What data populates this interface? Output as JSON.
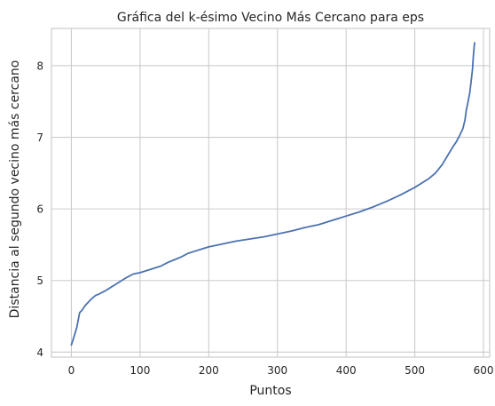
{
  "chart_data": {
    "type": "line",
    "title": "Gráfica del k-ésimo Vecino Más Cercano para eps",
    "xlabel": "Puntos",
    "ylabel": "Distancia al segundo vecino más cercano",
    "xlim": [
      -29,
      609
    ],
    "ylim": [
      3.93,
      8.52
    ],
    "xticks": [
      0,
      100,
      200,
      300,
      400,
      500,
      600
    ],
    "yticks": [
      4,
      5,
      6,
      7,
      8
    ],
    "grid": true,
    "series": [
      {
        "color": "#4c72b0",
        "x": [
          0,
          3,
          5,
          8,
          10,
          12,
          15,
          18,
          20,
          25,
          30,
          35,
          40,
          50,
          60,
          70,
          80,
          90,
          100,
          110,
          120,
          130,
          140,
          150,
          160,
          170,
          180,
          190,
          200,
          220,
          240,
          260,
          280,
          300,
          320,
          340,
          360,
          380,
          400,
          420,
          440,
          460,
          480,
          500,
          510,
          520,
          530,
          540,
          550,
          555,
          560,
          565,
          570,
          573,
          575,
          578,
          580,
          582,
          584,
          585,
          586,
          587
        ],
        "values": [
          4.1,
          4.19,
          4.25,
          4.35,
          4.45,
          4.55,
          4.58,
          4.62,
          4.65,
          4.7,
          4.75,
          4.79,
          4.81,
          4.86,
          4.92,
          4.98,
          5.04,
          5.09,
          5.11,
          5.14,
          5.17,
          5.2,
          5.25,
          5.29,
          5.33,
          5.38,
          5.41,
          5.44,
          5.47,
          5.51,
          5.55,
          5.58,
          5.61,
          5.65,
          5.69,
          5.74,
          5.78,
          5.84,
          5.9,
          5.96,
          6.03,
          6.11,
          6.2,
          6.3,
          6.36,
          6.42,
          6.5,
          6.62,
          6.78,
          6.86,
          6.93,
          7.02,
          7.12,
          7.24,
          7.38,
          7.52,
          7.62,
          7.78,
          7.95,
          8.1,
          8.22,
          8.32
        ]
      }
    ]
  }
}
